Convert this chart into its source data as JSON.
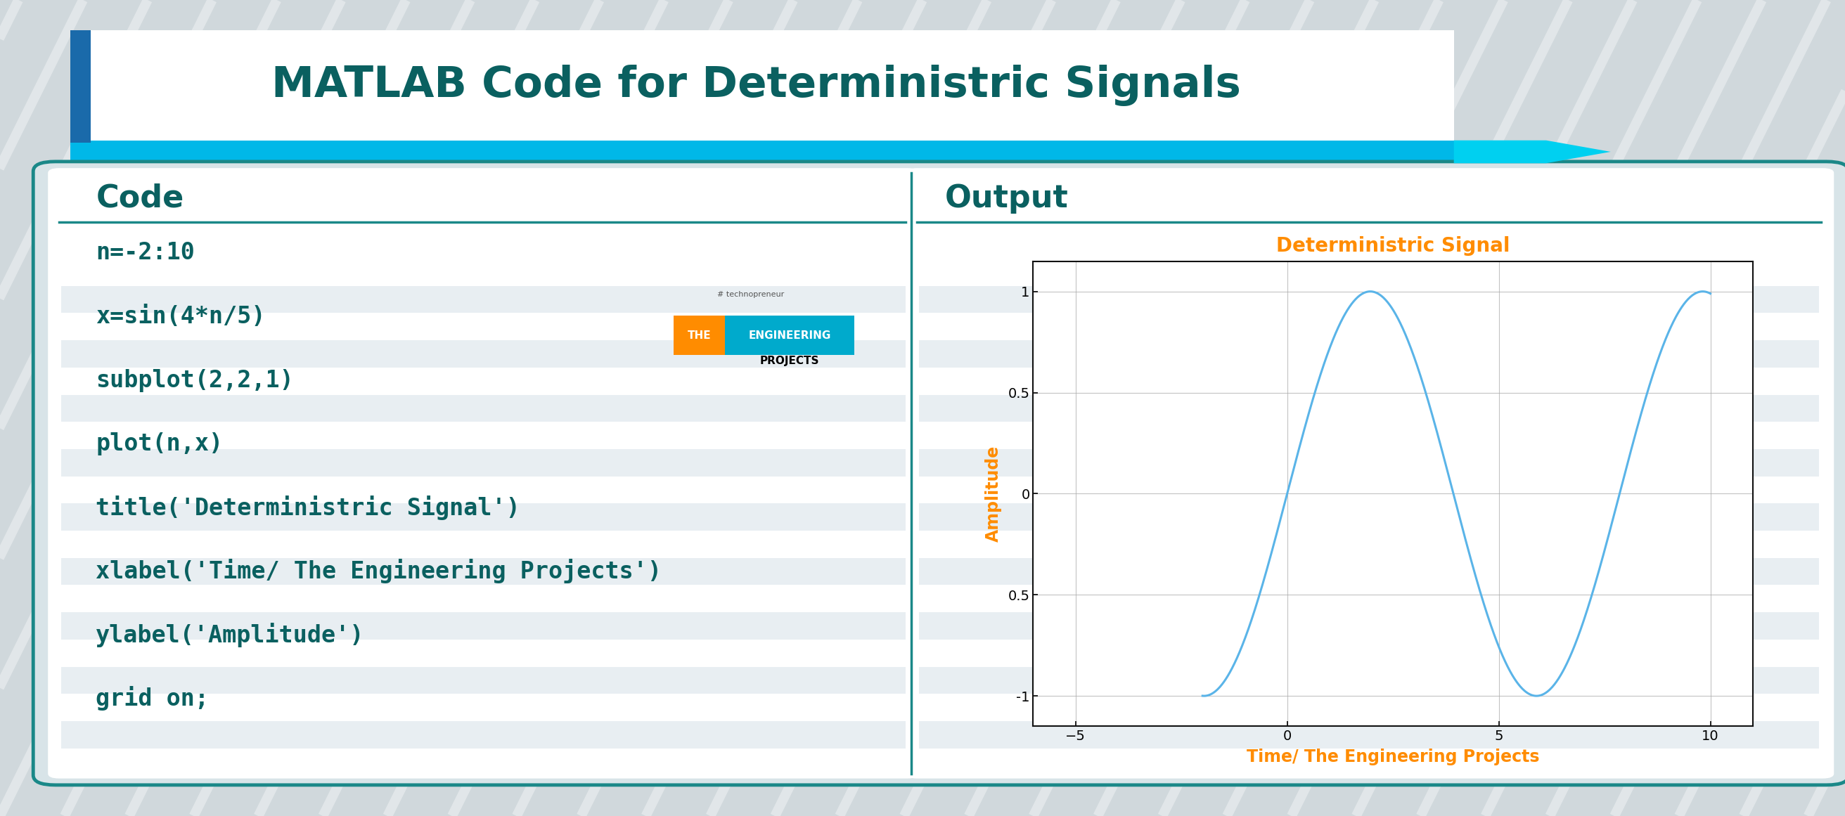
{
  "title": "MATLAB Code for Deterministric Signals",
  "title_color": "#0a6060",
  "title_fontsize": 44,
  "bg_color": "#d0d8dc",
  "box_border_color": "#1a8888",
  "header_code": "Code",
  "header_output": "Output",
  "header_fontsize": 32,
  "header_color": "#0a6060",
  "code_lines": [
    "n=-2:10",
    "x=sin(4*n/5)",
    "subplot(2,2,1)",
    "plot(n,x)",
    "title('Deterministric Signal')",
    "xlabel('Time/ The Engineering Projects')",
    "ylabel('Amplitude')",
    "grid on;"
  ],
  "code_color": "#0a6060",
  "code_fontsize": 24,
  "plot_title": "Deterministric Signal",
  "plot_title_color": "#ff8c00",
  "plot_title_fontsize": 20,
  "xlabel": "Time/ The Engineering Projects",
  "ylabel": "Amplitude",
  "axis_label_color": "#ff8c00",
  "axis_label_fontsize": 17,
  "line_color": "#5ab4e8",
  "line_width": 2.2,
  "xlim": [
    -6,
    11
  ],
  "ylim": [
    -1.15,
    1.15
  ],
  "xticks": [
    -5,
    0,
    5,
    10
  ],
  "yticks": [
    -1,
    -0.5,
    0,
    0.5,
    1
  ],
  "accent_blue_dark": "#1a6aaa",
  "accent_cyan": "#00b8e8",
  "accent_cyan2": "#00d0f0",
  "stripe_white_alpha": 0.38,
  "panel_stripe_light": "#e0e8ec",
  "panel_stripe_dark": "#d4dde2"
}
